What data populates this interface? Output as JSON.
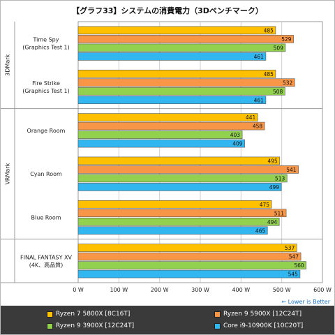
{
  "chart_data": {
    "type": "bar",
    "orientation": "horizontal",
    "title": "【グラフ33】システムの消費電力（3Dベンチマーク）",
    "groups": [
      {
        "name": "3DMark",
        "categories": [
          0,
          1
        ]
      },
      {
        "name": "VRMark",
        "categories": [
          2,
          3,
          4
        ]
      },
      {
        "name": "",
        "categories": [
          5
        ]
      }
    ],
    "categories": [
      [
        "Time Spy",
        "(Graphics Test 1)"
      ],
      [
        "Fire Strike",
        "(Graphics Test 1)"
      ],
      [
        "Orange Room"
      ],
      [
        "Cyan Room"
      ],
      [
        "Blue Room"
      ],
      [
        "FINAL FANTASY XV",
        "(4K、高品質)"
      ]
    ],
    "series": [
      {
        "name": "Ryzen 7 5800X [8C16T]",
        "color": "#ffc000",
        "values": [
          485,
          485,
          441,
          495,
          475,
          537
        ]
      },
      {
        "name": "Ryzen 9 5900X [12C24T]",
        "color": "#f79646",
        "values": [
          529,
          532,
          458,
          541,
          511,
          547
        ]
      },
      {
        "name": "Ryzen 9 3900X [12C24T]",
        "color": "#92d050",
        "values": [
          509,
          508,
          403,
          513,
          494,
          560
        ]
      },
      {
        "name": "Core i9-10900K [10C20T]",
        "color": "#31b6f0",
        "values": [
          461,
          461,
          409,
          499,
          465,
          545
        ]
      }
    ],
    "xlim": [
      0,
      600
    ],
    "xticks": [
      0,
      100,
      200,
      300,
      400,
      500,
      600
    ],
    "xtick_labels": [
      "0 W",
      "100 W",
      "200 W",
      "300 W",
      "400 W",
      "500 W",
      "600 W"
    ],
    "xlabel": "",
    "ylabel": "",
    "grid": true,
    "legend_placement": "bottom",
    "note": "← Lower is Better"
  }
}
